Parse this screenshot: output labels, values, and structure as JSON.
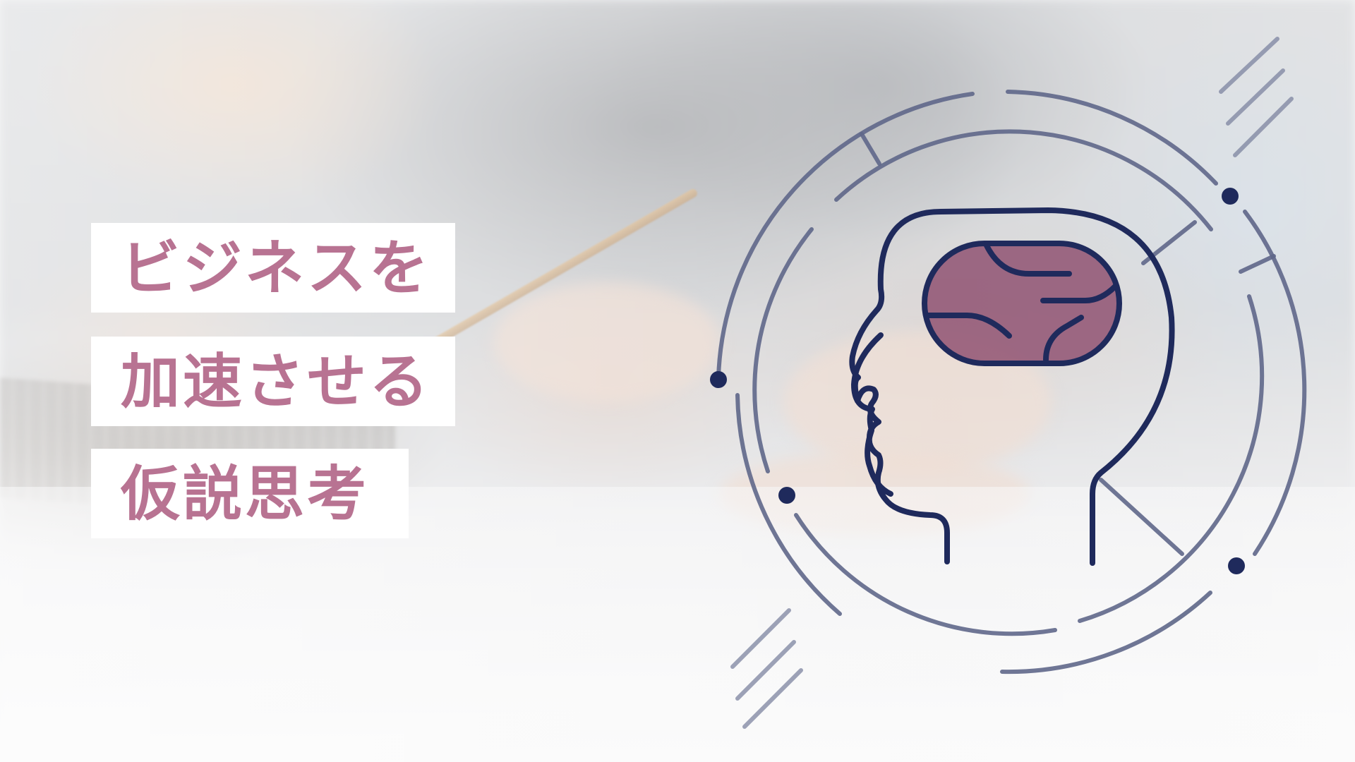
{
  "headline": {
    "line1": "ビジネスを",
    "line2": "加速させる",
    "line3": "仮説思考"
  },
  "colors": {
    "headline_text": "#b87392",
    "headline_box": "#ffffff",
    "illustration_stroke": "#1f2a5c",
    "ring_stroke": "#5f6789",
    "brain_fill": "#8b4a6b"
  },
  "icons": {
    "illustration": "head-brain-icon",
    "rings": "concentric-rings",
    "hatch": "diagonal-hatch-lines"
  }
}
